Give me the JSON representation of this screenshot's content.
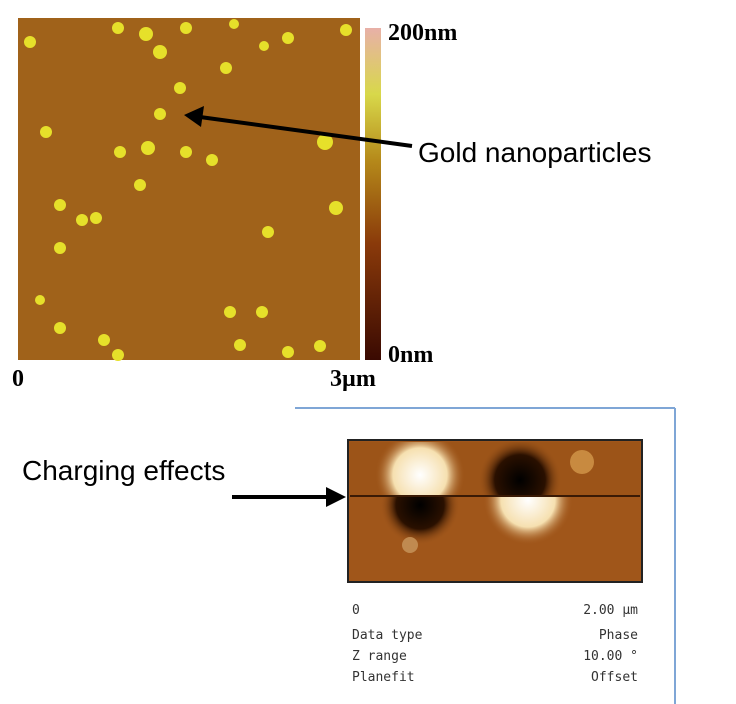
{
  "afm_image": {
    "colorbar": {
      "max_label": "200nm",
      "min_label": "0nm"
    },
    "x_axis": {
      "start": "0",
      "end": "3µm"
    }
  },
  "annotations": {
    "gold": "Gold nanoparticles",
    "charging": "Charging effects"
  },
  "phase_panel": {
    "scale_start": "0",
    "scale_end": "2.00 µm",
    "rows": [
      [
        "Data type",
        "Phase"
      ],
      [
        "Z range",
        "10.00 °"
      ],
      [
        "Planefit",
        "Offset"
      ]
    ]
  }
}
